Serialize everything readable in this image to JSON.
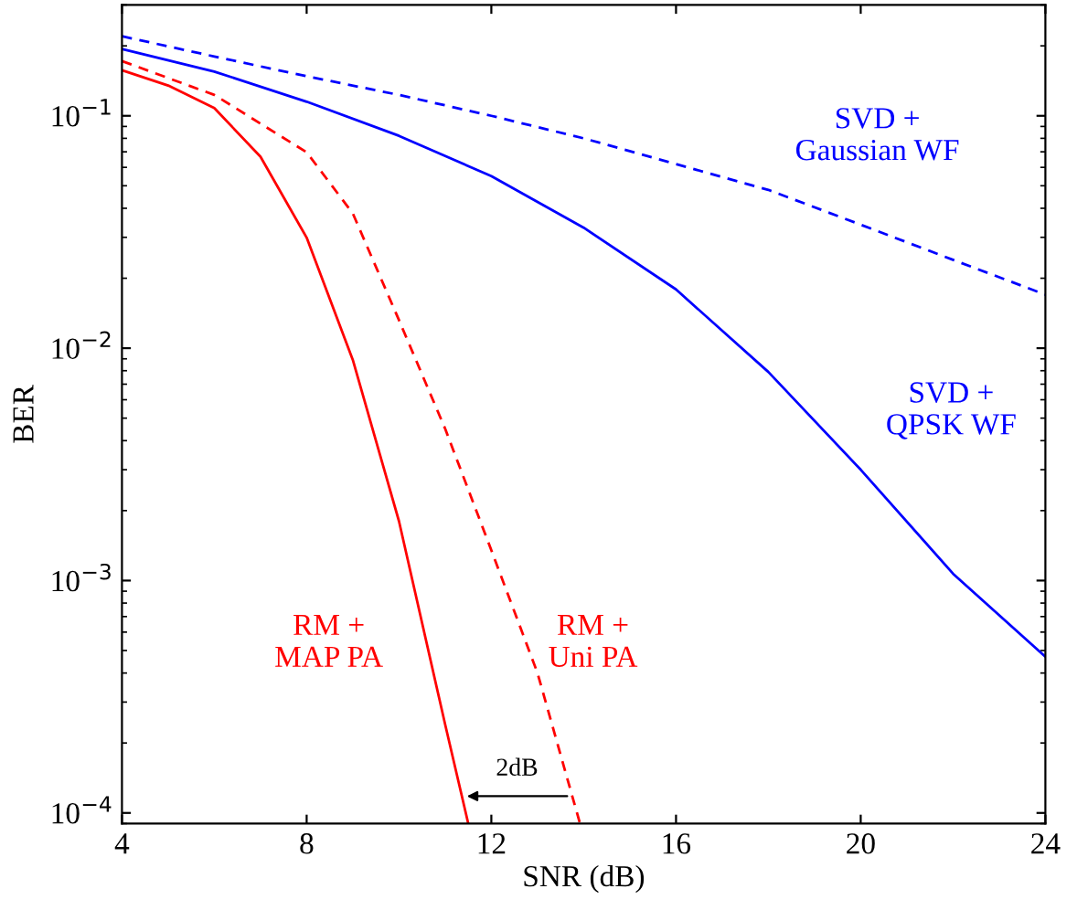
{
  "chart_data": {
    "type": "line",
    "xlabel": "SNR (dB)",
    "ylabel": "BER",
    "log": "y",
    "grid": false,
    "legend": false,
    "marker": "none",
    "xlim": [
      4,
      24
    ],
    "xticks": [
      4,
      8,
      12,
      16,
      20,
      24
    ],
    "ylim": [
      9e-05,
      0.3
    ],
    "yticks": [
      {
        "value": 0.0001,
        "label": "10$^{−4}$"
      },
      {
        "value": 0.001,
        "label": "10$^{−3}$"
      },
      {
        "value": 0.01,
        "label": "10$^{−2}$"
      },
      {
        "value": 0.1,
        "label": "10$^{−1}$"
      }
    ],
    "series": [
      {
        "name": "SVD +\nGaussian WF",
        "color": "#0000ff",
        "line_style": "dashed",
        "x": [
          4,
          6,
          8,
          10,
          12,
          14,
          16,
          18,
          20,
          22,
          24
        ],
        "values": [
          0.22,
          0.18,
          0.148,
          0.123,
          0.1,
          0.08,
          0.062,
          0.048,
          0.034,
          0.024,
          0.017
        ]
      },
      {
        "name": "SVD +\nQPSK WF",
        "color": "#0000ff",
        "line_style": "solid",
        "x": [
          4,
          6,
          8,
          10,
          12,
          14,
          16,
          18,
          20,
          22,
          24
        ],
        "values": [
          0.194,
          0.155,
          0.115,
          0.082,
          0.055,
          0.033,
          0.0179,
          0.0079,
          0.003,
          0.00107,
          0.00047
        ]
      },
      {
        "name": "RM +\nMAP PA",
        "color": "#ff0000",
        "line_style": "solid",
        "x": [
          4,
          5,
          6,
          7,
          8,
          9,
          10,
          11,
          11.5
        ],
        "values": [
          0.157,
          0.135,
          0.108,
          0.0667,
          0.0299,
          0.0089,
          0.0018,
          0.00024,
          9e-05
        ]
      },
      {
        "name": "RM +\nUni PA",
        "color": "#ff0000",
        "line_style": "dashed",
        "x": [
          4,
          6,
          8,
          9,
          10,
          11,
          12,
          13,
          13.92
        ],
        "values": [
          0.172,
          0.123,
          0.0697,
          0.038,
          0.0132,
          0.0045,
          0.00135,
          0.0004,
          9e-05
        ]
      }
    ],
    "annotations": [
      "2dB"
    ]
  }
}
